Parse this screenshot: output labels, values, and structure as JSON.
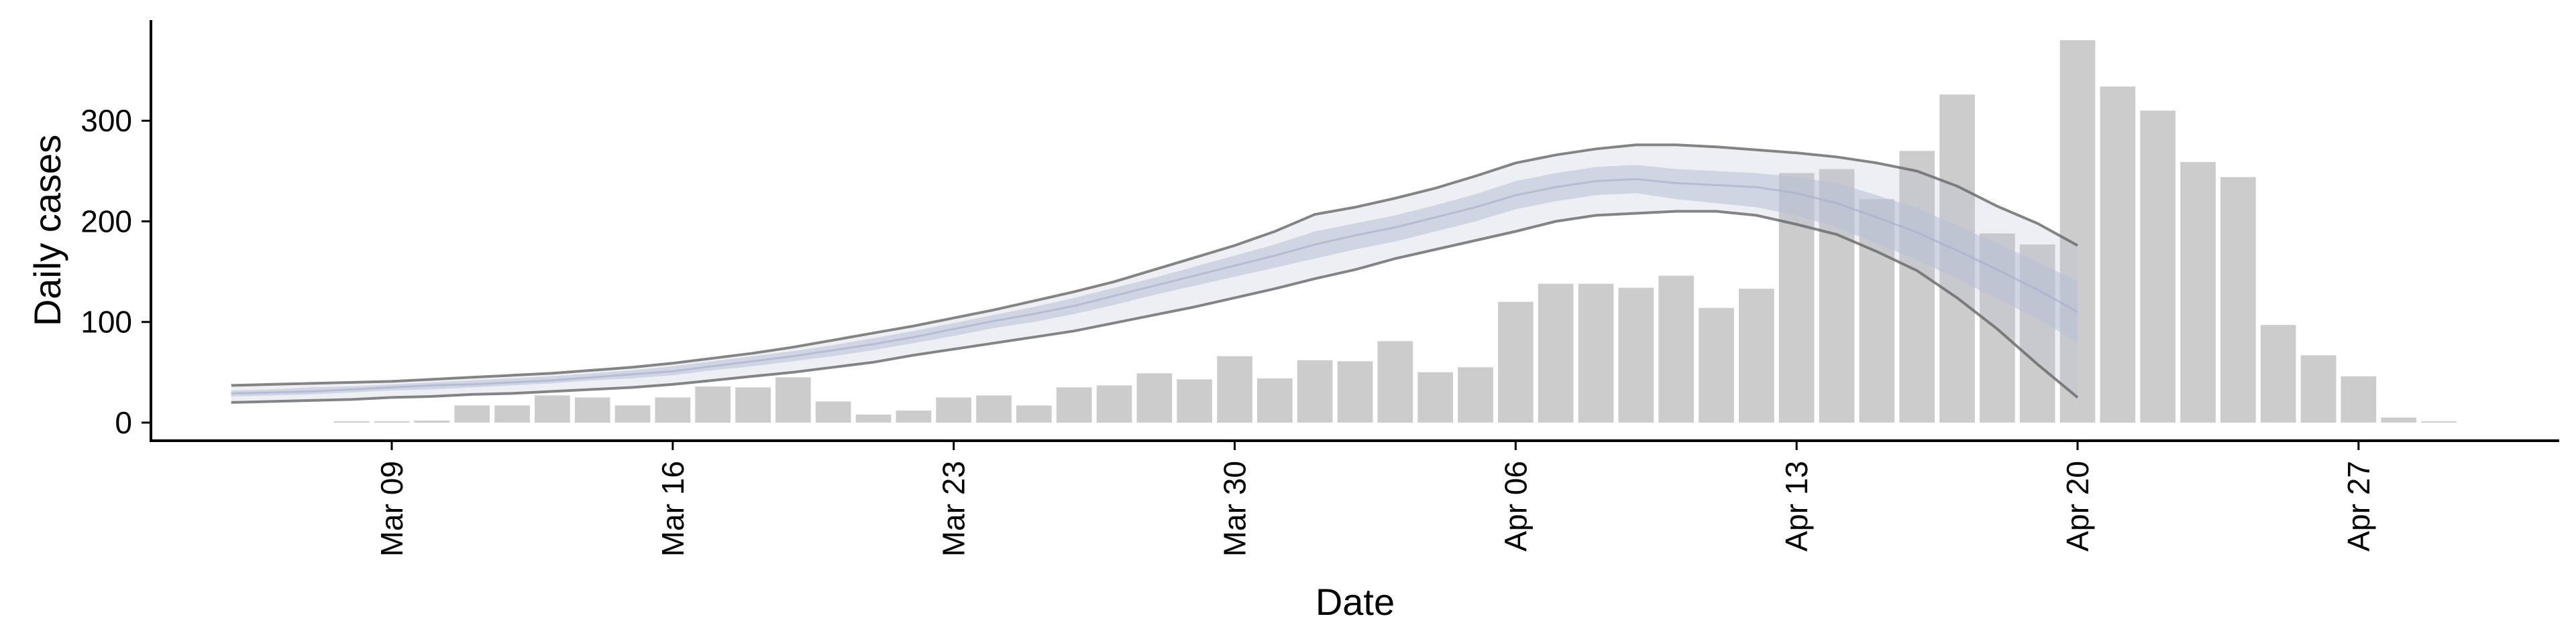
{
  "chart_data": {
    "type": "bar",
    "xlabel": "Date",
    "ylabel": "Daily cases",
    "ylim": [
      -18,
      400
    ],
    "y_ticks": [
      0,
      100,
      200,
      300
    ],
    "x_ticks": [
      {
        "date": "2020-03-09",
        "label": "Mar 09"
      },
      {
        "date": "2020-03-16",
        "label": "Mar 16"
      },
      {
        "date": "2020-03-23",
        "label": "Mar 23"
      },
      {
        "date": "2020-03-30",
        "label": "Mar 30"
      },
      {
        "date": "2020-04-06",
        "label": "Apr 06"
      },
      {
        "date": "2020-04-13",
        "label": "Apr 13"
      },
      {
        "date": "2020-04-20",
        "label": "Apr 20"
      },
      {
        "date": "2020-04-27",
        "label": "Apr 27"
      }
    ],
    "xlim": [
      "2020-03-03",
      "2020-05-02"
    ],
    "bar_color": "#cccccc",
    "bars": {
      "dates": [
        "2020-03-08",
        "2020-03-09",
        "2020-03-10",
        "2020-03-11",
        "2020-03-12",
        "2020-03-13",
        "2020-03-14",
        "2020-03-15",
        "2020-03-16",
        "2020-03-17",
        "2020-03-18",
        "2020-03-19",
        "2020-03-20",
        "2020-03-21",
        "2020-03-22",
        "2020-03-23",
        "2020-03-24",
        "2020-03-25",
        "2020-03-26",
        "2020-03-27",
        "2020-03-28",
        "2020-03-29",
        "2020-03-30",
        "2020-03-31",
        "2020-04-01",
        "2020-04-02",
        "2020-04-03",
        "2020-04-04",
        "2020-04-05",
        "2020-04-06",
        "2020-04-07",
        "2020-04-08",
        "2020-04-09",
        "2020-04-10",
        "2020-04-11",
        "2020-04-12",
        "2020-04-13",
        "2020-04-14",
        "2020-04-15",
        "2020-04-16",
        "2020-04-17",
        "2020-04-18",
        "2020-04-19",
        "2020-04-20",
        "2020-04-21",
        "2020-04-22",
        "2020-04-23",
        "2020-04-24",
        "2020-04-25",
        "2020-04-26",
        "2020-04-27",
        "2020-04-28",
        "2020-04-29"
      ],
      "values": [
        1,
        0,
        2,
        17,
        17,
        27,
        25,
        17,
        25,
        36,
        35,
        45,
        21,
        8,
        12,
        25,
        27,
        17,
        35,
        37,
        49,
        43,
        66,
        44,
        62,
        61,
        81,
        50,
        55,
        120,
        138,
        138,
        134,
        146,
        114,
        133,
        248,
        252,
        222,
        270,
        326,
        188,
        177,
        380,
        334,
        310,
        259,
        244,
        97,
        67,
        46,
        5,
        1
      ]
    },
    "band_color": "#b8bfd6",
    "nowcast": {
      "dates": [
        "2020-03-05",
        "2020-03-06",
        "2020-03-07",
        "2020-03-08",
        "2020-03-09",
        "2020-03-10",
        "2020-03-11",
        "2020-03-12",
        "2020-03-13",
        "2020-03-14",
        "2020-03-15",
        "2020-03-16",
        "2020-03-17",
        "2020-03-18",
        "2020-03-19",
        "2020-03-20",
        "2020-03-21",
        "2020-03-22",
        "2020-03-23",
        "2020-03-24",
        "2020-03-25",
        "2020-03-26",
        "2020-03-27",
        "2020-03-28",
        "2020-03-29",
        "2020-03-30",
        "2020-03-31",
        "2020-04-01",
        "2020-04-02",
        "2020-04-03",
        "2020-04-04",
        "2020-04-05",
        "2020-04-06",
        "2020-04-07",
        "2020-04-08",
        "2020-04-09",
        "2020-04-10",
        "2020-04-11",
        "2020-04-12",
        "2020-04-13",
        "2020-04-14",
        "2020-04-15",
        "2020-04-16",
        "2020-04-17",
        "2020-04-18",
        "2020-04-19",
        "2020-04-20"
      ],
      "upper90": [
        37,
        38,
        39,
        40,
        41,
        43,
        45,
        47,
        49,
        52,
        55,
        59,
        64,
        69,
        75,
        82,
        89,
        96,
        104,
        112,
        121,
        130,
        140,
        152,
        164,
        176,
        190,
        207,
        214,
        223,
        233,
        245,
        258,
        266,
        272,
        276,
        276,
        274,
        271,
        268,
        264,
        258,
        250,
        235,
        215,
        198,
        176
      ],
      "upper50": [
        32,
        33,
        35,
        36,
        38,
        40,
        42,
        44,
        46,
        49,
        52,
        56,
        61,
        66,
        71,
        77,
        84,
        91,
        99,
        107,
        115,
        124,
        134,
        144,
        155,
        166,
        177,
        190,
        198,
        206,
        216,
        227,
        240,
        248,
        254,
        256,
        252,
        250,
        248,
        244,
        238,
        226,
        213,
        196,
        178,
        160,
        140
      ],
      "median": [
        29,
        30,
        31,
        33,
        35,
        37,
        38,
        40,
        42,
        45,
        48,
        51,
        56,
        61,
        66,
        72,
        78,
        85,
        93,
        101,
        108,
        116,
        126,
        136,
        146,
        156,
        166,
        177,
        186,
        194,
        204,
        214,
        226,
        234,
        240,
        242,
        238,
        236,
        234,
        228,
        218,
        204,
        189,
        171,
        152,
        132,
        110
      ],
      "lower50": [
        26,
        27,
        28,
        30,
        32,
        33,
        35,
        37,
        39,
        42,
        44,
        47,
        52,
        56,
        61,
        66,
        72,
        79,
        86,
        94,
        100,
        108,
        117,
        127,
        136,
        145,
        154,
        163,
        172,
        180,
        190,
        200,
        212,
        220,
        226,
        228,
        222,
        218,
        214,
        206,
        194,
        178,
        162,
        143,
        123,
        103,
        80
      ],
      "lower90": [
        20,
        21,
        22,
        23,
        25,
        26,
        28,
        29,
        31,
        33,
        35,
        38,
        42,
        46,
        50,
        55,
        60,
        67,
        73,
        79,
        85,
        91,
        99,
        107,
        115,
        124,
        133,
        143,
        152,
        163,
        172,
        181,
        190,
        200,
        206,
        208,
        210,
        210,
        206,
        197,
        187,
        170,
        151,
        124,
        93,
        58,
        25
      ]
    }
  }
}
